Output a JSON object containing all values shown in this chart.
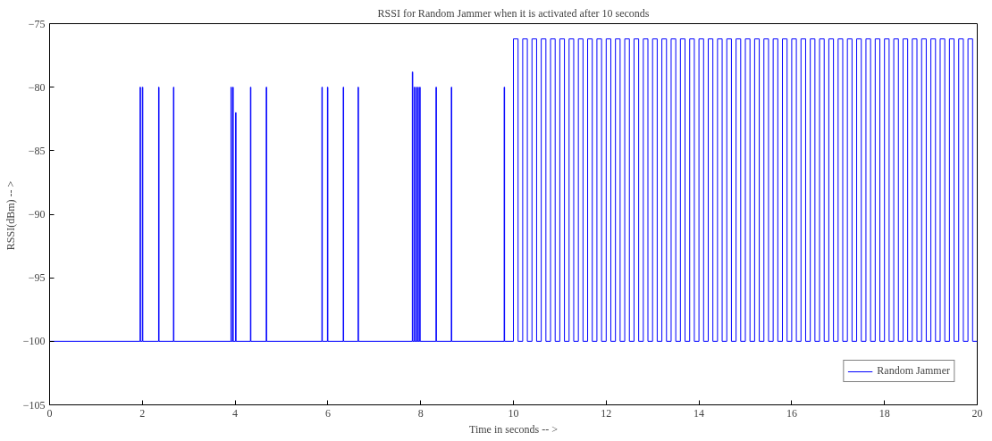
{
  "chart_data": {
    "type": "line",
    "title": "RSSI for Random Jammer when it is activated after 10 seconds",
    "xlabel": "Time in seconds -- >",
    "ylabel": "RSSI(dBm)  -- >",
    "xlim": [
      0,
      20
    ],
    "ylim": [
      -105,
      -75
    ],
    "xticks": [
      0,
      2,
      4,
      6,
      8,
      10,
      12,
      14,
      16,
      18,
      20
    ],
    "yticks": [
      -105,
      -100,
      -95,
      -90,
      -85,
      -80,
      -75
    ],
    "grid": false,
    "legend": "bottom right",
    "marker": "none",
    "line_style": "solid",
    "series": [
      {
        "name": "Random Jammer",
        "color": "#0000ff",
        "x": [
          0,
          1.95,
          1.95,
          1.96,
          1.96,
          2.0,
          2.0,
          2.01,
          2.01,
          2.35,
          2.35,
          2.36,
          2.36,
          2.67,
          2.67,
          2.68,
          2.68,
          3.91,
          3.91,
          3.92,
          3.92,
          3.95,
          3.95,
          3.96,
          3.96,
          4.01,
          4.01,
          4.02,
          4.02,
          4.33,
          4.33,
          4.34,
          4.34,
          4.67,
          4.67,
          4.68,
          4.68,
          5.87,
          5.87,
          5.88,
          5.88,
          5.99,
          5.99,
          6.0,
          6.0,
          6.33,
          6.33,
          6.34,
          6.34,
          6.65,
          6.65,
          6.66,
          6.66,
          7.82,
          7.82,
          7.83,
          7.83,
          7.86,
          7.86,
          7.87,
          7.87,
          7.9,
          7.9,
          7.91,
          7.91,
          7.94,
          7.94,
          7.95,
          7.95,
          7.98,
          7.98,
          7.99,
          7.99,
          8.33,
          8.33,
          8.34,
          8.34,
          8.66,
          8.66,
          8.67,
          8.67,
          9.8,
          9.8,
          9.81,
          9.81,
          10.0,
          10.0,
          10.1,
          10.1,
          10.2,
          10.2,
          10.3,
          10.3,
          10.4,
          10.4,
          10.5,
          10.5,
          10.6,
          10.6,
          10.7,
          10.7,
          10.8,
          10.8,
          10.9,
          10.9,
          11.0,
          11.0,
          11.1,
          11.1,
          11.2,
          11.2,
          11.3,
          11.3,
          11.4,
          11.4,
          11.5,
          11.5,
          11.6,
          11.6,
          11.7,
          11.7,
          11.8,
          11.8,
          11.9,
          11.9,
          12.0,
          12.0,
          12.1,
          12.1,
          12.2,
          12.2,
          12.3,
          12.3,
          12.4,
          12.4,
          12.5,
          12.5,
          12.6,
          12.6,
          12.7,
          12.7,
          12.8,
          12.8,
          12.9,
          12.9,
          13.0,
          13.0,
          13.1,
          13.1,
          13.2,
          13.2,
          13.3,
          13.3,
          13.4,
          13.4,
          13.5,
          13.5,
          13.6,
          13.6,
          13.7,
          13.7,
          13.8,
          13.8,
          13.9,
          13.9,
          14.0,
          14.0,
          14.1,
          14.1,
          14.2,
          14.2,
          14.3,
          14.3,
          14.4,
          14.4,
          14.5,
          14.5,
          14.6,
          14.6,
          14.7,
          14.7,
          14.8,
          14.8,
          14.9,
          14.9,
          15.0,
          15.0,
          15.1,
          15.1,
          15.2,
          15.2,
          15.3,
          15.3,
          15.4,
          15.4,
          15.5,
          15.5,
          15.6,
          15.6,
          15.7,
          15.7,
          15.8,
          15.8,
          15.9,
          15.9,
          16.0,
          16.0,
          16.1,
          16.1,
          16.2,
          16.2,
          16.3,
          16.3,
          16.4,
          16.4,
          16.5,
          16.5,
          16.6,
          16.6,
          16.7,
          16.7,
          16.8,
          16.8,
          16.9,
          16.9,
          17.0,
          17.0,
          17.1,
          17.1,
          17.2,
          17.2,
          17.3,
          17.3,
          17.4,
          17.4,
          17.5,
          17.5,
          17.6,
          17.6,
          17.7,
          17.7,
          17.8,
          17.8,
          17.9,
          17.9,
          18.0,
          18.0,
          18.1,
          18.1,
          18.2,
          18.2,
          18.3,
          18.3,
          18.4,
          18.4,
          18.5,
          18.5,
          18.6,
          18.6,
          18.7,
          18.7,
          18.8,
          18.8,
          18.9,
          18.9,
          19.0,
          19.0,
          19.1,
          19.1,
          19.2,
          19.2,
          19.3,
          19.3,
          19.4,
          19.4,
          19.5,
          19.5,
          19.6,
          19.6,
          19.7,
          19.7,
          19.8,
          19.8,
          19.9,
          19.9,
          20
        ],
        "values": [
          -100,
          -100,
          -80,
          -80,
          -100,
          -100,
          -80,
          -80,
          -100,
          -100,
          -80,
          -80,
          -100,
          -100,
          -80,
          -80,
          -100,
          -100,
          -80,
          -80,
          -100,
          -100,
          -80,
          -80,
          -100,
          -100,
          -82,
          -82,
          -100,
          -100,
          -80,
          -80,
          -100,
          -100,
          -80,
          -80,
          -100,
          -100,
          -80,
          -80,
          -100,
          -100,
          -80,
          -80,
          -100,
          -100,
          -80,
          -80,
          -100,
          -100,
          -80,
          -80,
          -100,
          -100,
          -78.8,
          -78.8,
          -100,
          -100,
          -80,
          -80,
          -100,
          -100,
          -80,
          -80,
          -100,
          -100,
          -80,
          -80,
          -100,
          -100,
          -80,
          -80,
          -100,
          -100,
          -80,
          -80,
          -100,
          -100,
          -80,
          -80,
          -100,
          -100,
          -80,
          -80,
          -100,
          -100,
          -76.2,
          -76.2,
          -100,
          -100,
          -76.2,
          -76.2,
          -100,
          -100,
          -76.2,
          -76.2,
          -100,
          -100,
          -76.2,
          -76.2,
          -100,
          -100,
          -76.2,
          -76.2,
          -100,
          -100,
          -76.2,
          -76.2,
          -100,
          -100,
          -76.2,
          -76.2,
          -100,
          -100,
          -76.2,
          -76.2,
          -100,
          -100,
          -76.2,
          -76.2,
          -100,
          -100,
          -76.2,
          -76.2,
          -100,
          -100,
          -76.2,
          -76.2,
          -100,
          -100,
          -76.2,
          -76.2,
          -100,
          -100,
          -76.2,
          -76.2,
          -100,
          -100,
          -76.2,
          -76.2,
          -100,
          -100,
          -76.2,
          -76.2,
          -100,
          -100,
          -76.2,
          -76.2,
          -100,
          -100,
          -76.2,
          -76.2,
          -100,
          -100,
          -76.2,
          -76.2,
          -100,
          -100,
          -76.2,
          -76.2,
          -100,
          -100,
          -76.2,
          -76.2,
          -100,
          -100,
          -76.2,
          -76.2,
          -100,
          -100,
          -76.2,
          -76.2,
          -100,
          -100,
          -76.2,
          -76.2,
          -100,
          -100,
          -76.2,
          -76.2,
          -100,
          -100,
          -76.2,
          -76.2,
          -100,
          -100,
          -76.2,
          -76.2,
          -100,
          -100,
          -76.2,
          -76.2,
          -100,
          -100,
          -76.2,
          -76.2,
          -100,
          -100,
          -76.2,
          -76.2,
          -100,
          -100,
          -76.2,
          -76.2,
          -100,
          -100,
          -76.2,
          -76.2,
          -100,
          -100,
          -76.2,
          -76.2,
          -100,
          -100,
          -76.2,
          -76.2,
          -100,
          -100,
          -76.2,
          -76.2,
          -100,
          -100,
          -76.2,
          -76.2,
          -100,
          -100,
          -76.2,
          -76.2,
          -100,
          -100,
          -76.2,
          -76.2,
          -100,
          -100,
          -76.2,
          -76.2,
          -100,
          -100,
          -76.2,
          -76.2,
          -100,
          -100,
          -76.2,
          -76.2,
          -100,
          -100,
          -76.2,
          -76.2,
          -100,
          -100,
          -76.2,
          -76.2,
          -100,
          -100,
          -76.2,
          -76.2,
          -100,
          -100,
          -76.2,
          -76.2,
          -100,
          -100,
          -76.2,
          -76.2,
          -100,
          -100,
          -76.2,
          -76.2,
          -100,
          -100,
          -76.2,
          -76.2,
          -100,
          -100,
          -76.2,
          -76.2,
          -100,
          -100,
          -76.2,
          -76.2,
          -100,
          -100,
          -76.2,
          -76.2,
          -100,
          -100
        ]
      }
    ]
  }
}
